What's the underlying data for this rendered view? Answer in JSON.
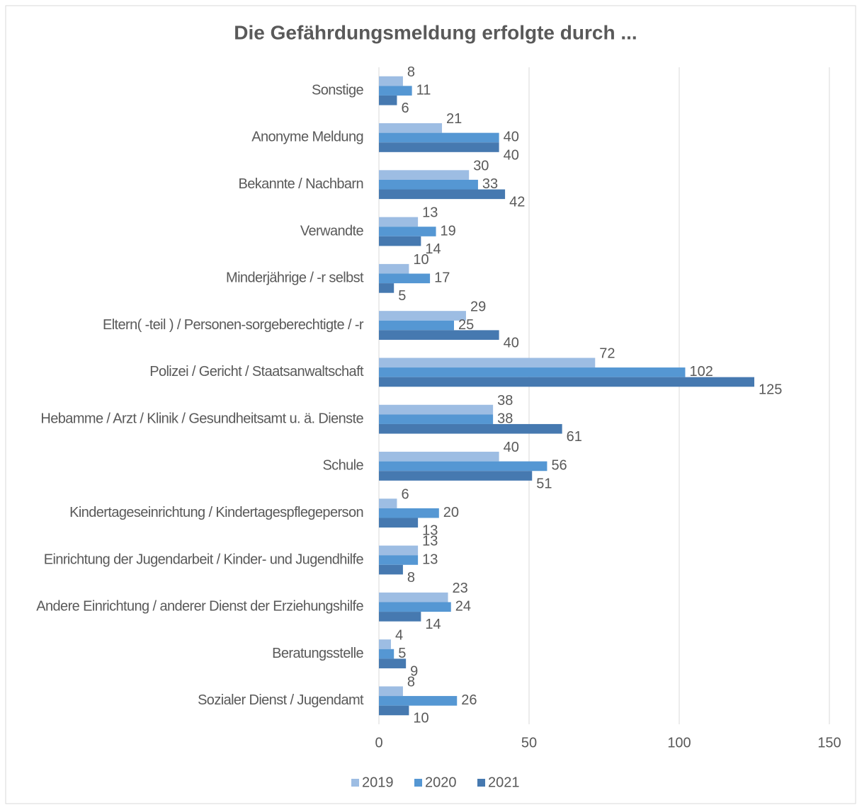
{
  "chart_data": {
    "type": "barh",
    "title": "Die Gefährdungsmeldung  erfolgte durch ...",
    "categories": [
      "Sonstige",
      "Anonyme Meldung",
      "Bekannte / Nachbarn",
      "Verwandte",
      "Minderjährige / -r selbst",
      "Eltern( -teil ) / Personen-sorgeberechtigte / -r",
      "Polizei / Gericht / Staatsanwaltschaft",
      "Hebamme / Arzt / Klinik / Gesundheitsamt u. ä. Dienste",
      "Schule",
      "Kindertageseinrichtung / Kindertagespflegeperson",
      "Einrichtung der Jugendarbeit / Kinder- und Jugendhilfe",
      "Andere Einrichtung / anderer Dienst der Erziehungshilfe",
      "Beratungsstelle",
      "Sozialer Dienst / Jugendamt"
    ],
    "series": [
      {
        "name": "2019",
        "color": "#9dbde3",
        "values": [
          8,
          21,
          30,
          13,
          10,
          29,
          72,
          38,
          40,
          6,
          13,
          23,
          4,
          8
        ]
      },
      {
        "name": "2020",
        "color": "#5597d3",
        "values": [
          11,
          40,
          33,
          19,
          17,
          25,
          102,
          38,
          56,
          20,
          13,
          24,
          5,
          26
        ]
      },
      {
        "name": "2021",
        "color": "#4679b0",
        "values": [
          6,
          40,
          42,
          14,
          5,
          40,
          125,
          61,
          51,
          13,
          8,
          14,
          9,
          10
        ]
      }
    ],
    "xlim": [
      0,
      150
    ],
    "xticks": [
      0,
      50,
      100,
      150
    ],
    "grid": true,
    "legend": "bottom"
  }
}
